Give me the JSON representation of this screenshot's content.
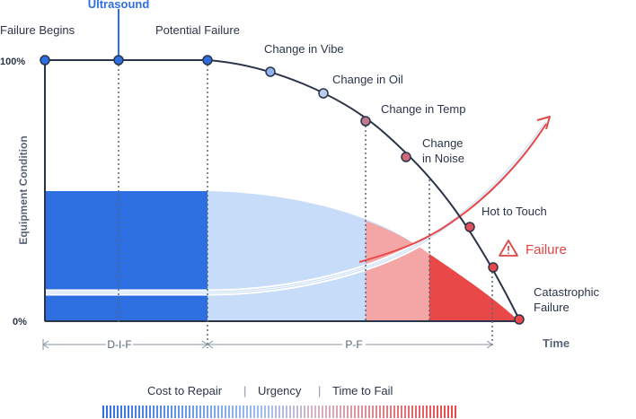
{
  "labels": {
    "ultrasound": "Ultrasound",
    "failure_begins": "Failure Begins",
    "potential_failure": "Potential Failure",
    "change_vibe": "Change in Vibe",
    "change_oil": "Change in Oil",
    "change_temp": "Change in Temp",
    "change_noise_1": "Change",
    "change_noise_2": "in Noise",
    "hot_to_touch": "Hot to Touch",
    "failure": "Failure",
    "catastrophic_1": "Catastrophic",
    "catastrophic_2": "Failure"
  },
  "axis": {
    "y_label": "Equipment Condition",
    "y_top": "100%",
    "y_bottom": "0%",
    "x_label": "Time"
  },
  "intervals": {
    "dif": "D-I-F",
    "pf": "P-F"
  },
  "legend": {
    "cost": "Cost to Repair",
    "sep1": "|",
    "urgency": "Urgency",
    "sep2": "|",
    "time_to_fail": "Time to Fail"
  },
  "colors": {
    "navy": "#2b3448",
    "blue": "#2d6fe0",
    "light_blue": "#c7dcf8",
    "pink": "#f4a6a6",
    "red": "#e84848",
    "failure_red": "#e04545",
    "dot_purple": "#c07a8e",
    "dot_lightblue": "#8fb3ee"
  }
}
